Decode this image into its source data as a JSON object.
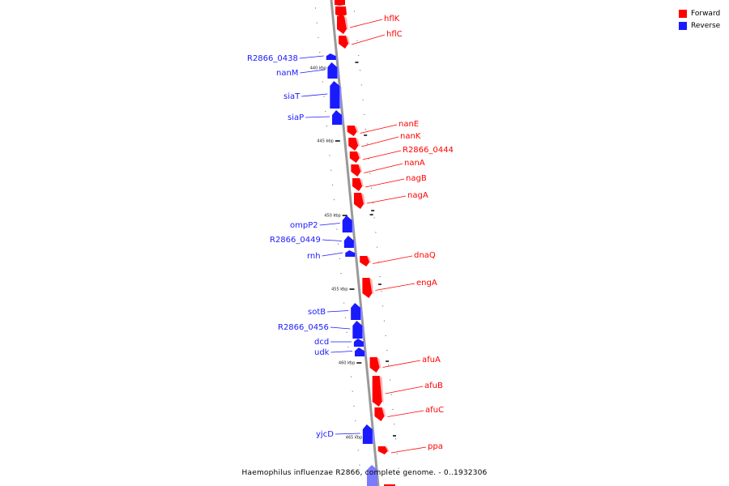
{
  "legend": {
    "forward_label": "Forward",
    "reverse_label": "Reverse",
    "forward_color": "#ff0000",
    "reverse_color": "#1a1aff"
  },
  "caption": "Haemophilus influenzae R2866, complete genome. - 0..1932306",
  "ticks": [
    "440 kbp",
    "445 kbp",
    "450 kbp",
    "455 kbp",
    "460 kbp",
    "465 kbp"
  ],
  "genes": [
    {
      "name": "hflK",
      "strand": "forward"
    },
    {
      "name": "hflC",
      "strand": "forward"
    },
    {
      "name": "R2866_0438",
      "strand": "reverse"
    },
    {
      "name": "nanM",
      "strand": "reverse"
    },
    {
      "name": "siaT",
      "strand": "reverse"
    },
    {
      "name": "siaP",
      "strand": "reverse"
    },
    {
      "name": "nanE",
      "strand": "forward"
    },
    {
      "name": "nanK",
      "strand": "forward"
    },
    {
      "name": "R2866_0444",
      "strand": "forward"
    },
    {
      "name": "nanA",
      "strand": "forward"
    },
    {
      "name": "nagB",
      "strand": "forward"
    },
    {
      "name": "nagA",
      "strand": "forward"
    },
    {
      "name": "ompP2",
      "strand": "reverse"
    },
    {
      "name": "R2866_0449",
      "strand": "reverse"
    },
    {
      "name": "rnh",
      "strand": "reverse"
    },
    {
      "name": "dnaQ",
      "strand": "forward"
    },
    {
      "name": "engA",
      "strand": "forward"
    },
    {
      "name": "sotB",
      "strand": "reverse"
    },
    {
      "name": "R2866_0456",
      "strand": "reverse"
    },
    {
      "name": "dcd",
      "strand": "reverse"
    },
    {
      "name": "udk",
      "strand": "reverse"
    },
    {
      "name": "afuA",
      "strand": "forward"
    },
    {
      "name": "afuB",
      "strand": "forward"
    },
    {
      "name": "afuC",
      "strand": "forward"
    },
    {
      "name": "yjcD",
      "strand": "reverse"
    },
    {
      "name": "ppa",
      "strand": "forward"
    }
  ]
}
